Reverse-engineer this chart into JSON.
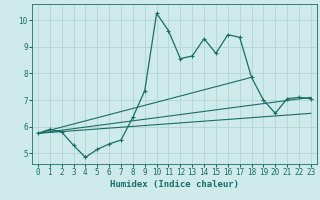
{
  "xlabel": "Humidex (Indice chaleur)",
  "ylabel": "",
  "bg_color": "#ceeaea",
  "grid_color": "#b8d8d8",
  "line_color": "#1a6e64",
  "xlim": [
    -0.5,
    23.5
  ],
  "ylim": [
    4.6,
    10.6
  ],
  "xticks": [
    0,
    1,
    2,
    3,
    4,
    5,
    6,
    7,
    8,
    9,
    10,
    11,
    12,
    13,
    14,
    15,
    16,
    17,
    18,
    19,
    20,
    21,
    22,
    23
  ],
  "yticks": [
    5,
    6,
    7,
    8,
    9,
    10
  ],
  "line1_x": [
    0,
    1,
    2,
    3,
    4,
    5,
    6,
    7,
    8,
    9,
    10,
    11,
    12,
    13,
    14,
    15,
    16,
    17,
    18,
    19,
    20,
    21,
    22,
    23
  ],
  "line1_y": [
    5.75,
    5.9,
    5.8,
    5.3,
    4.85,
    5.15,
    5.35,
    5.5,
    6.35,
    7.35,
    10.25,
    9.6,
    8.55,
    8.65,
    9.3,
    8.75,
    9.45,
    9.35,
    7.85,
    7.0,
    6.5,
    7.05,
    7.1,
    7.05
  ],
  "line2_x": [
    0,
    23
  ],
  "line2_y": [
    5.75,
    7.1
  ],
  "line3_x": [
    0,
    18
  ],
  "line3_y": [
    5.75,
    7.85
  ],
  "line4_x": [
    0,
    23
  ],
  "line4_y": [
    5.75,
    6.5
  ],
  "xlabel_fontsize": 6.5,
  "tick_fontsize": 5.5
}
